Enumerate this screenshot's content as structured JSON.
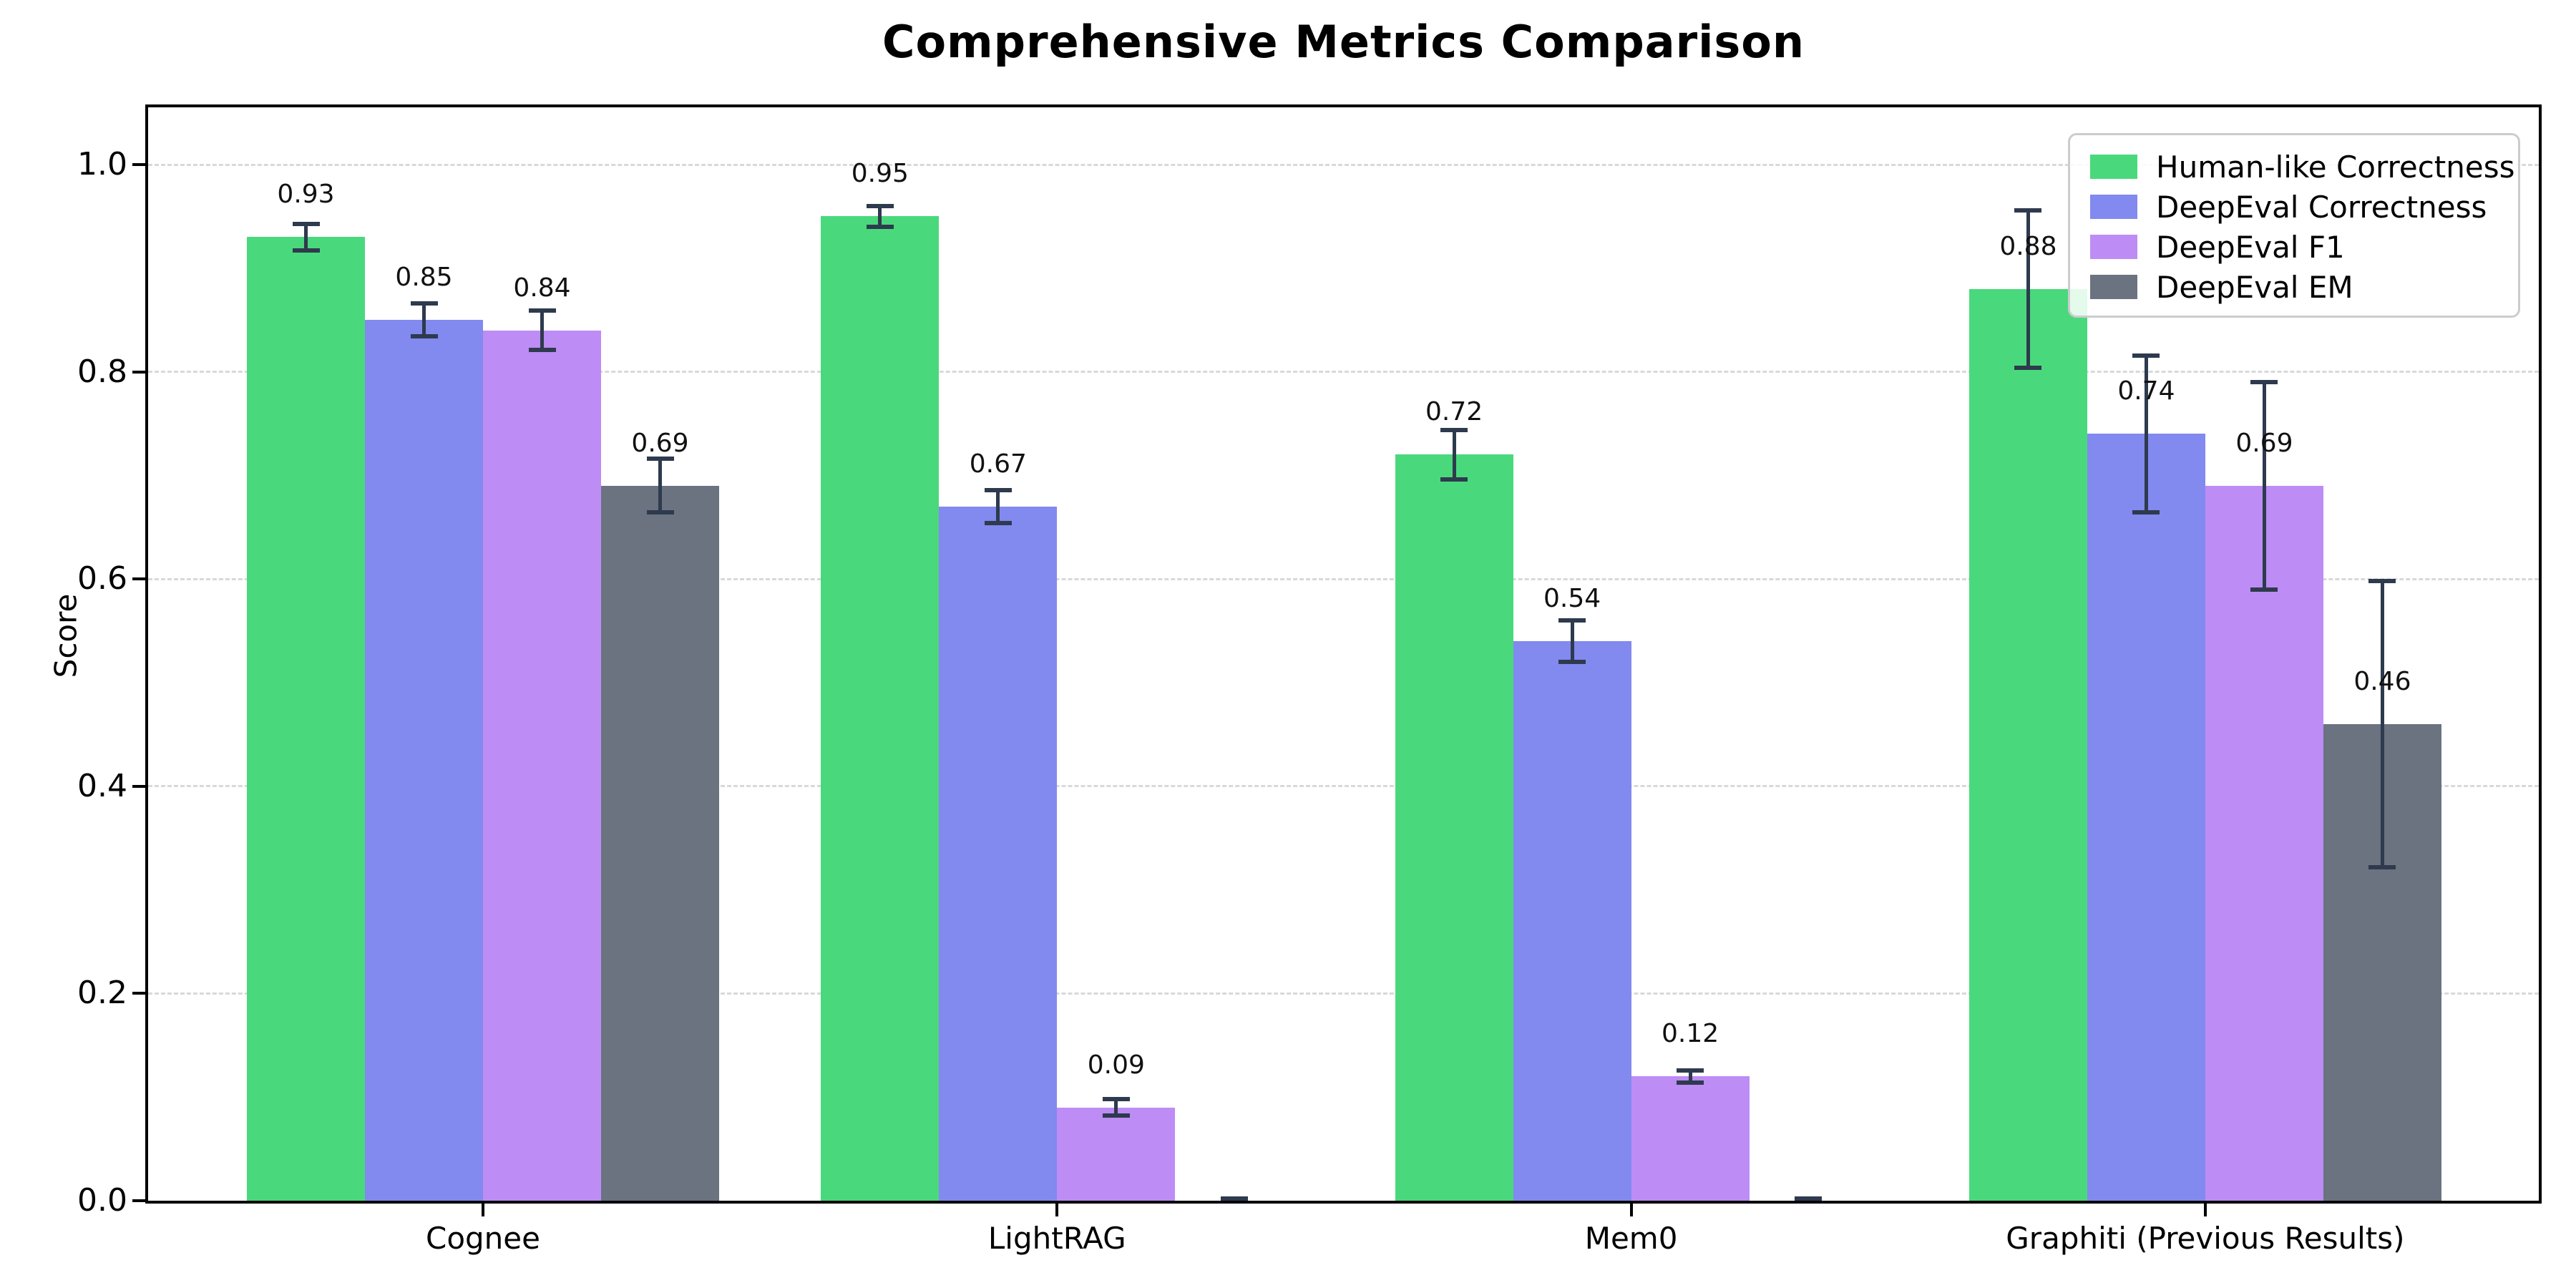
{
  "colors": {
    "background": "#ffffff",
    "axis": "#000000",
    "grid": "#d9d9d9",
    "legend_border": "#cccccc",
    "error_bar": "#2e3a4d",
    "green": "#49d97c",
    "blue": "#8289ef",
    "purple": "#bd8cf5",
    "gray": "#6b7280"
  },
  "chart_data": {
    "type": "bar",
    "title": "Comprehensive Metrics Comparison",
    "xlabel": "",
    "ylabel": "Score",
    "categories": [
      "Cognee",
      "LightRAG",
      "Mem0",
      "Graphiti (Previous Results)"
    ],
    "series": [
      {
        "name": "Human-like Correctness",
        "color": "#49d97c",
        "values": [
          0.93,
          0.95,
          0.72,
          0.88
        ],
        "errors": [
          0.015,
          0.012,
          0.026,
          0.078
        ],
        "labels": [
          "0.93",
          "0.95",
          "0.72",
          "0.88"
        ]
      },
      {
        "name": "DeepEval Correctness",
        "color": "#8289ef",
        "values": [
          0.85,
          0.67,
          0.54,
          0.74
        ],
        "errors": [
          0.018,
          0.018,
          0.022,
          0.078
        ],
        "labels": [
          "0.85",
          "0.67",
          "0.54",
          "0.74"
        ]
      },
      {
        "name": "DeepEval F1",
        "color": "#bd8cf5",
        "values": [
          0.84,
          0.09,
          0.12,
          0.69
        ],
        "errors": [
          0.021,
          0.01,
          0.008,
          0.102
        ],
        "labels": [
          "0.84",
          "0.09",
          "0.12",
          "0.69"
        ]
      },
      {
        "name": "DeepEval EM",
        "color": "#6b7280",
        "values": [
          0.69,
          0.0,
          0.0,
          0.46
        ],
        "errors": [
          0.028,
          0.004,
          0.004,
          0.14
        ],
        "labels": [
          "0.69",
          "",
          "",
          "0.46"
        ]
      }
    ],
    "ylim": [
      0,
      1.055
    ],
    "yticks": [
      "0.0",
      "0.2",
      "0.4",
      "0.6",
      "0.8",
      "1.0"
    ],
    "grid": true,
    "grid_style": "dashed",
    "legend_position": "upper right",
    "error_bar_color": "#2e3a4d"
  }
}
